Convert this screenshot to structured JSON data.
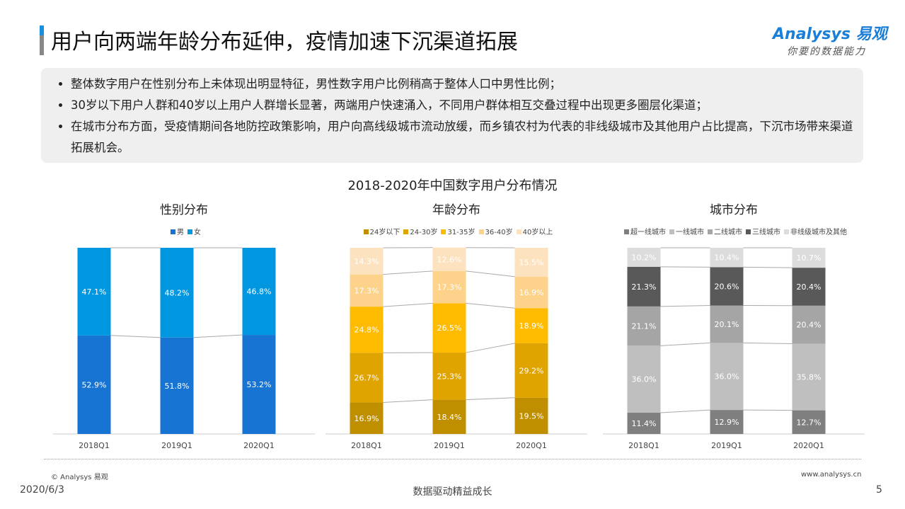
{
  "header": {
    "title": "用户向两端年龄分布延伸，疫情加速下沉渠道拓展",
    "logo_main": "Analysys 易观",
    "logo_tagline": "你要的数据能力"
  },
  "notes": [
    "整体数字用户在性别分布上未体现出明显特征，男性数字用户比例稍高于整体人口中男性比例；",
    "30岁以下用户人群和40岁以上用户人群增长显著，两端用户快速涌入，不同用户群体相互交叠过程中出现更多圈层化渠道；",
    "在城市分布方面，受疫情期间各地防控政策影响，用户向高线级城市流动放缓，而乡镇农村为代表的非线级城市及其他用户占比提高，下沉市场带来渠道拓展机会。"
  ],
  "main_title": "2018-2020年中国数字用户分布情况",
  "chart_data": [
    {
      "type": "bar",
      "stacked": true,
      "title": "性别分布",
      "categories": [
        "2018Q1",
        "2019Q1",
        "2020Q1"
      ],
      "ylim": [
        0,
        100
      ],
      "series": [
        {
          "name": "男",
          "color": "#1874d3",
          "values": [
            52.9,
            51.8,
            53.2
          ]
        },
        {
          "name": "女",
          "color": "#0097e0",
          "values": [
            47.1,
            48.2,
            46.8
          ]
        }
      ]
    },
    {
      "type": "bar",
      "stacked": true,
      "title": "年龄分布",
      "categories": [
        "2018Q1",
        "2019Q1",
        "2020Q1"
      ],
      "ylim": [
        0,
        100
      ],
      "series": [
        {
          "name": "24岁以下",
          "color": "#c08f00",
          "values": [
            16.9,
            18.4,
            19.5
          ]
        },
        {
          "name": "24-30岁",
          "color": "#e0a400",
          "values": [
            26.7,
            25.3,
            29.2
          ]
        },
        {
          "name": "31-35岁",
          "color": "#ffbb00",
          "values": [
            24.8,
            26.5,
            18.9
          ]
        },
        {
          "name": "36-40岁",
          "color": "#fdd28a",
          "values": [
            17.3,
            17.3,
            16.9
          ]
        },
        {
          "name": "40岁以上",
          "color": "#fde2bf",
          "values": [
            14.3,
            12.6,
            15.5
          ]
        }
      ]
    },
    {
      "type": "bar",
      "stacked": true,
      "title": "城市分布",
      "categories": [
        "2018Q1",
        "2019Q1",
        "2020Q1"
      ],
      "ylim": [
        0,
        100
      ],
      "series": [
        {
          "name": "超一线城市",
          "color": "#7f7f7f",
          "values": [
            11.4,
            12.9,
            12.7
          ]
        },
        {
          "name": "一线城市",
          "color": "#bfbfbf",
          "values": [
            36.0,
            36.0,
            35.8
          ]
        },
        {
          "name": "二线城市",
          "color": "#a5a5a5",
          "values": [
            21.1,
            20.1,
            20.4
          ]
        },
        {
          "name": "三线城市",
          "color": "#595959",
          "values": [
            21.3,
            20.6,
            20.4
          ]
        },
        {
          "name": "非线级城市及其他",
          "color": "#dcdcdc",
          "values": [
            10.2,
            10.4,
            10.7
          ]
        }
      ]
    }
  ],
  "footer": {
    "copyright": "© Analysys 易观",
    "website": "www.analysys.cn",
    "date": "2020/6/3",
    "slogan": "数据驱动精益成长",
    "page": "5"
  }
}
